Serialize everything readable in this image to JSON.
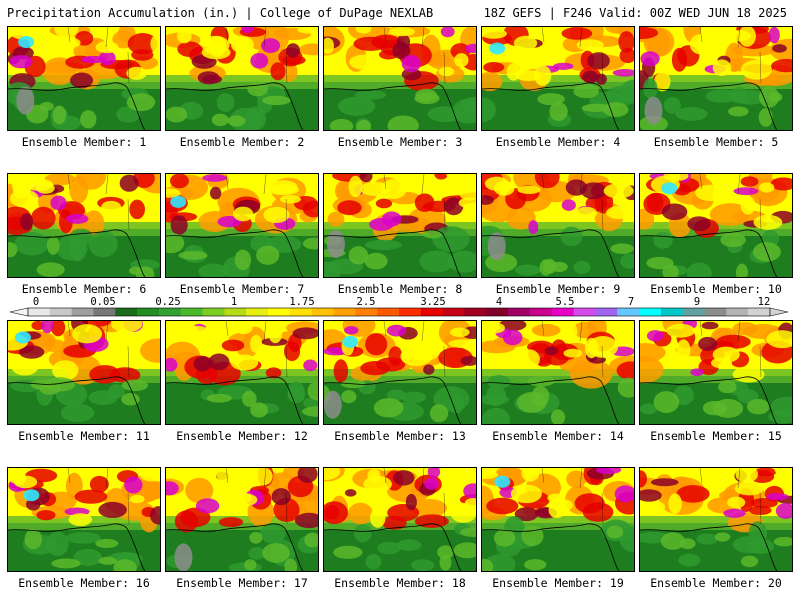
{
  "header": {
    "title": "Precipitation Accumulation (in.) | College of DuPage NEXLAB",
    "run_info": "18Z GEFS | F246 Valid: 00Z WED JUN 18 2025"
  },
  "panels": [
    {
      "caption": "Ensemble Member: 1"
    },
    {
      "caption": "Ensemble Member: 2"
    },
    {
      "caption": "Ensemble Member: 3"
    },
    {
      "caption": "Ensemble Member: 4"
    },
    {
      "caption": "Ensemble Member: 5"
    },
    {
      "caption": "Ensemble Member: 6"
    },
    {
      "caption": "Ensemble Member: 7"
    },
    {
      "caption": "Ensemble Member: 8"
    },
    {
      "caption": "Ensemble Member: 9"
    },
    {
      "caption": "Ensemble Member: 10"
    },
    {
      "caption": "Ensemble Member: 11"
    },
    {
      "caption": "Ensemble Member: 12"
    },
    {
      "caption": "Ensemble Member: 13"
    },
    {
      "caption": "Ensemble Member: 14"
    },
    {
      "caption": "Ensemble Member: 15"
    },
    {
      "caption": "Ensemble Member: 16"
    },
    {
      "caption": "Ensemble Member: 17"
    },
    {
      "caption": "Ensemble Member: 18"
    },
    {
      "caption": "Ensemble Member: 19"
    },
    {
      "caption": "Ensemble Member: 20"
    }
  ],
  "colorbar": {
    "labels": [
      "0",
      "0.05",
      "0.25",
      "1",
      "1.75",
      "2.5",
      "3.25",
      "4",
      "5.5",
      "7",
      "9",
      "12"
    ],
    "colors": [
      "#e8e8e8",
      "#c8c8c8",
      "#a0a0a0",
      "#787878",
      "#1a6b1a",
      "#238b23",
      "#33a033",
      "#4cb82c",
      "#7dcc22",
      "#b4dc1a",
      "#e6ef14",
      "#ffff00",
      "#ffe000",
      "#ffc000",
      "#ffa000",
      "#ff8000",
      "#ff5a00",
      "#ff2d00",
      "#e60000",
      "#c80014",
      "#a0001e",
      "#82002a",
      "#a00064",
      "#c8008c",
      "#e600c8",
      "#d24be6",
      "#a064f0",
      "#64c8ff",
      "#00ffff",
      "#00c8c8",
      "#64a0a0",
      "#8c8c8c",
      "#b4b4b4",
      "#d2d2d2"
    ]
  }
}
